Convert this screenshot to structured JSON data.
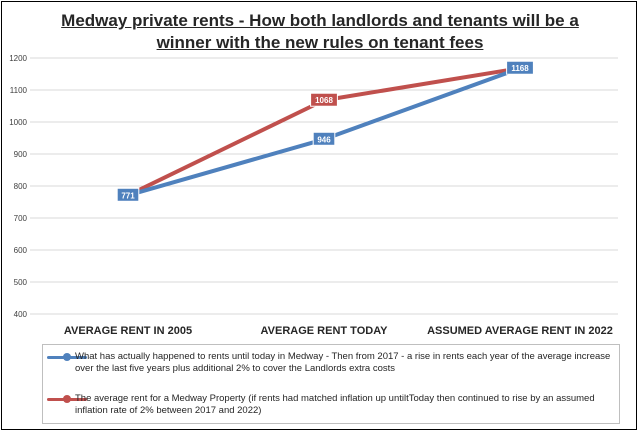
{
  "chart_data": {
    "type": "line",
    "title": "Medway private rents - How both landlords and tenants will be a winner with the new rules on tenant fees",
    "title_line1": "Medway private rents - How both landlords and tenants will be a",
    "title_line2": "winner with the new rules on tenant fees",
    "categories": [
      "AVERAGE RENT IN 2005",
      "AVERAGE RENT TODAY",
      "ASSUMED AVERAGE RENT IN 2022"
    ],
    "ylim": [
      400,
      1200
    ],
    "yticks": [
      "400",
      "500",
      "600",
      "700",
      "800",
      "900",
      "1000",
      "1100",
      "1200"
    ],
    "grid": true,
    "legend_position": "bottom",
    "series": [
      {
        "name": "What has actually happened to rents until today in Medway - Then from 2017 - a rise in rents each year of the average increase over the last five years plus additional 2% to cover the Landlords extra costs",
        "values": [
          771,
          946,
          1168
        ],
        "labels": [
          "771",
          "946",
          "1168"
        ],
        "color": "#4f81bd"
      },
      {
        "name": "The average rent for a Medway Property (if rents had matched inflation up untiltToday then continued to rise by an assumed inflation rate of 2% between 2017 and 2022)",
        "values": [
          771,
          1068,
          1168
        ],
        "labels": [
          "",
          "1068",
          ""
        ],
        "color": "#c0504d"
      }
    ]
  }
}
